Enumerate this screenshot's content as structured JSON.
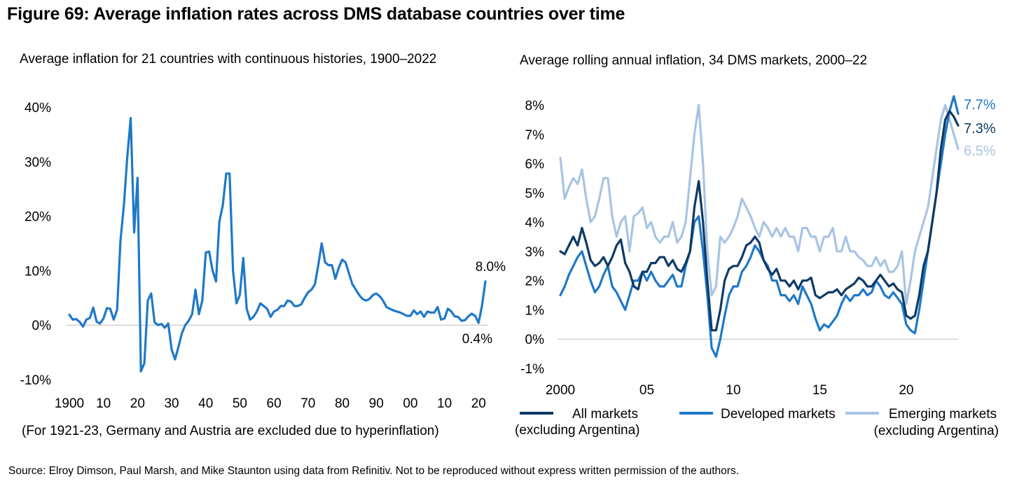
{
  "figure": {
    "title": "Figure 69: Average inflation rates across DMS database countries over time",
    "source": "Source: Elroy Dimson, Paul Marsh, and Mike Staunton using data from Refinitiv. Not to be reproduced without express written permission of the authors."
  },
  "colors": {
    "primary_blue": "#1f78c8",
    "dark_navy": "#0d3a66",
    "light_blue": "#a8c4e3",
    "axis": "#bbbbbb"
  },
  "chart_data": [
    {
      "type": "line",
      "title": "Average inflation for 21 countries with continuous histories, 1900–2022",
      "note": "(For 1921-23, Germany and Austria are excluded due to hyperinflation)",
      "xlim": [
        1900,
        2022
      ],
      "ylim": [
        -10,
        40
      ],
      "ytick_values": [
        -10,
        0,
        10,
        20,
        30,
        40
      ],
      "ytick_labels": [
        "-10%",
        "0%",
        "10%",
        "20%",
        "30%",
        "40%"
      ],
      "xtick_values": [
        1900,
        1910,
        1920,
        1930,
        1940,
        1950,
        1960,
        1970,
        1980,
        1990,
        2000,
        2010,
        2020
      ],
      "xtick_labels": [
        "1900",
        "10",
        "20",
        "30",
        "40",
        "50",
        "60",
        "70",
        "80",
        "90",
        "00",
        "10",
        "20"
      ],
      "grid": false,
      "annotations": [
        {
          "text": "8.0%",
          "x": 2022,
          "y": 8.0
        },
        {
          "text": "0.4%",
          "x": 2020,
          "y": 0.4
        }
      ],
      "series": [
        {
          "color": "#1f78c8",
          "x": [
            1900,
            1901,
            1902,
            1903,
            1904,
            1905,
            1906,
            1907,
            1908,
            1909,
            1910,
            1911,
            1912,
            1913,
            1914,
            1915,
            1916,
            1917,
            1918,
            1919,
            1920,
            1921,
            1922,
            1923,
            1924,
            1925,
            1926,
            1927,
            1928,
            1929,
            1930,
            1931,
            1932,
            1933,
            1934,
            1935,
            1936,
            1937,
            1938,
            1939,
            1940,
            1941,
            1942,
            1943,
            1944,
            1945,
            1946,
            1947,
            1948,
            1949,
            1950,
            1951,
            1952,
            1953,
            1954,
            1955,
            1956,
            1957,
            1958,
            1959,
            1960,
            1961,
            1962,
            1963,
            1964,
            1965,
            1966,
            1967,
            1968,
            1969,
            1970,
            1971,
            1972,
            1973,
            1974,
            1975,
            1976,
            1977,
            1978,
            1979,
            1980,
            1981,
            1982,
            1983,
            1984,
            1985,
            1986,
            1987,
            1988,
            1989,
            1990,
            1991,
            1992,
            1993,
            1994,
            1995,
            1996,
            1997,
            1998,
            1999,
            2000,
            2001,
            2002,
            2003,
            2004,
            2005,
            2006,
            2007,
            2008,
            2009,
            2010,
            2011,
            2012,
            2013,
            2014,
            2015,
            2016,
            2017,
            2018,
            2019,
            2020,
            2021,
            2022
          ],
          "y": [
            1.9,
            1.0,
            1.1,
            0.6,
            -0.3,
            1.0,
            1.3,
            3.2,
            0.6,
            0.3,
            1.2,
            3.1,
            3.0,
            1.0,
            2.8,
            15.5,
            22.0,
            31.0,
            38.0,
            17.0,
            27.0,
            -8.5,
            -7.0,
            4.5,
            5.8,
            0.5,
            0.0,
            0.2,
            -0.5,
            0.3,
            -4.5,
            -6.3,
            -4.0,
            -1.5,
            0.0,
            0.8,
            2.0,
            6.5,
            2.0,
            4.5,
            13.3,
            13.5,
            10.0,
            8.0,
            19.0,
            22.0,
            27.8,
            27.8,
            10.0,
            4.0,
            5.5,
            12.3,
            3.0,
            1.0,
            1.5,
            2.5,
            4.0,
            3.5,
            3.0,
            1.5,
            2.5,
            2.8,
            3.5,
            3.5,
            4.5,
            4.3,
            3.5,
            3.5,
            3.8,
            5.0,
            6.0,
            6.5,
            7.5,
            11.0,
            15.0,
            11.5,
            11.0,
            11.0,
            8.5,
            10.5,
            12.0,
            11.5,
            9.5,
            7.5,
            6.5,
            5.5,
            4.8,
            4.5,
            4.8,
            5.5,
            5.8,
            5.3,
            4.5,
            3.3,
            3.0,
            2.7,
            2.5,
            2.3,
            2.0,
            1.7,
            1.7,
            2.7,
            2.0,
            2.5,
            1.5,
            2.5,
            2.3,
            2.3,
            3.3,
            1.0,
            1.2,
            3.0,
            2.5,
            1.6,
            1.5,
            0.8,
            0.9,
            1.6,
            2.1,
            1.7,
            0.4,
            3.5,
            8.0
          ]
        }
      ]
    },
    {
      "type": "line",
      "title": "Average rolling annual inflation, 34 DMS markets, 2000–22",
      "xlim": [
        2000,
        2023
      ],
      "ylim": [
        -1,
        8
      ],
      "ytick_values": [
        -1,
        0,
        1,
        2,
        3,
        4,
        5,
        6,
        7,
        8
      ],
      "ytick_labels": [
        "-1%",
        "0%",
        "1%",
        "2%",
        "3%",
        "4%",
        "5%",
        "6%",
        "7%",
        "8%"
      ],
      "xtick_values": [
        2000,
        2005,
        2010,
        2015,
        2020
      ],
      "xtick_labels": [
        "2000",
        "05",
        "10",
        "15",
        "20"
      ],
      "grid": false,
      "legend_position": "bottom",
      "end_labels": [
        "7.7%",
        "7.3%",
        "6.5%"
      ],
      "series": [
        {
          "name": "Emerging markets\n(excluding Argentina)",
          "color": "#a8c4e3",
          "x": [
            2000.0,
            2000.25,
            2000.5,
            2000.75,
            2001.0,
            2001.25,
            2001.5,
            2001.75,
            2002.0,
            2002.25,
            2002.5,
            2002.75,
            2003.0,
            2003.25,
            2003.5,
            2003.75,
            2004.0,
            2004.25,
            2004.5,
            2004.75,
            2005.0,
            2005.25,
            2005.5,
            2005.75,
            2006.0,
            2006.25,
            2006.5,
            2006.75,
            2007.0,
            2007.25,
            2007.5,
            2007.75,
            2008.0,
            2008.25,
            2008.5,
            2008.75,
            2009.0,
            2009.25,
            2009.5,
            2009.75,
            2010.0,
            2010.25,
            2010.5,
            2010.75,
            2011.0,
            2011.25,
            2011.5,
            2011.75,
            2012.0,
            2012.25,
            2012.5,
            2012.75,
            2013.0,
            2013.25,
            2013.5,
            2013.75,
            2014.0,
            2014.25,
            2014.5,
            2014.75,
            2015.0,
            2015.25,
            2015.5,
            2015.75,
            2016.0,
            2016.25,
            2016.5,
            2016.75,
            2017.0,
            2017.25,
            2017.5,
            2017.75,
            2018.0,
            2018.25,
            2018.5,
            2018.75,
            2019.0,
            2019.25,
            2019.5,
            2019.75,
            2020.0,
            2020.25,
            2020.5,
            2020.75,
            2021.0,
            2021.25,
            2021.5,
            2021.75,
            2022.0,
            2022.25,
            2022.5,
            2022.75,
            2023.0
          ],
          "y": [
            6.2,
            4.8,
            5.2,
            5.5,
            5.3,
            5.8,
            4.8,
            4.0,
            4.2,
            4.8,
            5.5,
            5.5,
            4.2,
            3.5,
            4.0,
            4.2,
            3.0,
            4.2,
            4.3,
            4.5,
            3.8,
            4.0,
            3.5,
            3.3,
            3.5,
            3.5,
            4.0,
            3.3,
            3.5,
            4.0,
            5.5,
            7.0,
            8.0,
            6.0,
            3.0,
            1.5,
            1.8,
            3.5,
            3.3,
            3.5,
            3.8,
            4.2,
            4.8,
            4.5,
            4.2,
            3.8,
            3.5,
            4.0,
            3.8,
            3.5,
            3.8,
            3.5,
            3.8,
            3.5,
            3.5,
            3.0,
            3.8,
            3.8,
            3.5,
            3.5,
            3.0,
            3.5,
            3.5,
            3.8,
            3.0,
            3.0,
            3.5,
            3.0,
            3.0,
            2.8,
            2.7,
            2.5,
            2.5,
            2.8,
            2.5,
            2.7,
            2.3,
            2.3,
            2.5,
            3.0,
            1.2,
            2.0,
            3.0,
            3.5,
            4.0,
            4.5,
            5.5,
            6.5,
            7.5,
            8.0,
            7.5,
            7.0,
            6.5
          ]
        },
        {
          "name": "Developed markets",
          "color": "#1f78c8",
          "x": [
            2000.0,
            2000.25,
            2000.5,
            2000.75,
            2001.0,
            2001.25,
            2001.5,
            2001.75,
            2002.0,
            2002.25,
            2002.5,
            2002.75,
            2003.0,
            2003.25,
            2003.5,
            2003.75,
            2004.0,
            2004.25,
            2004.5,
            2004.75,
            2005.0,
            2005.25,
            2005.5,
            2005.75,
            2006.0,
            2006.25,
            2006.5,
            2006.75,
            2007.0,
            2007.25,
            2007.5,
            2007.75,
            2008.0,
            2008.25,
            2008.5,
            2008.75,
            2009.0,
            2009.25,
            2009.5,
            2009.75,
            2010.0,
            2010.25,
            2010.5,
            2010.75,
            2011.0,
            2011.25,
            2011.5,
            2011.75,
            2012.0,
            2012.25,
            2012.5,
            2012.75,
            2013.0,
            2013.25,
            2013.5,
            2013.75,
            2014.0,
            2014.25,
            2014.5,
            2014.75,
            2015.0,
            2015.25,
            2015.5,
            2015.75,
            2016.0,
            2016.25,
            2016.5,
            2016.75,
            2017.0,
            2017.25,
            2017.5,
            2017.75,
            2018.0,
            2018.25,
            2018.5,
            2018.75,
            2019.0,
            2019.25,
            2019.5,
            2019.75,
            2020.0,
            2020.25,
            2020.5,
            2020.75,
            2021.0,
            2021.25,
            2021.5,
            2021.75,
            2022.0,
            2022.25,
            2022.5,
            2022.75,
            2023.0
          ],
          "y": [
            1.5,
            1.8,
            2.2,
            2.5,
            2.8,
            3.0,
            2.5,
            2.0,
            1.6,
            1.8,
            2.2,
            2.5,
            1.8,
            1.6,
            1.3,
            1.0,
            1.5,
            2.0,
            2.0,
            2.3,
            2.0,
            2.3,
            2.0,
            1.8,
            1.8,
            2.0,
            2.2,
            1.8,
            1.8,
            2.5,
            3.0,
            4.0,
            4.2,
            3.0,
            1.5,
            -0.3,
            -0.6,
            0.0,
            0.8,
            1.5,
            1.8,
            1.8,
            2.3,
            2.5,
            2.8,
            3.2,
            3.0,
            2.7,
            2.5,
            2.0,
            2.0,
            1.5,
            1.5,
            1.3,
            1.5,
            1.2,
            1.8,
            1.5,
            1.2,
            0.7,
            0.3,
            0.5,
            0.4,
            0.6,
            0.8,
            1.2,
            1.5,
            1.3,
            1.5,
            1.5,
            1.7,
            1.5,
            1.6,
            2.0,
            1.8,
            1.5,
            1.4,
            1.6,
            1.4,
            1.2,
            0.5,
            0.3,
            0.2,
            1.0,
            2.0,
            3.0,
            4.0,
            5.0,
            6.0,
            7.0,
            7.8,
            8.3,
            7.7
          ]
        },
        {
          "name": "All markets\n(excluding Argentina)",
          "color": "#0d3a66",
          "x": [
            2000.0,
            2000.25,
            2000.5,
            2000.75,
            2001.0,
            2001.25,
            2001.5,
            2001.75,
            2002.0,
            2002.25,
            2002.5,
            2002.75,
            2003.0,
            2003.25,
            2003.5,
            2003.75,
            2004.0,
            2004.25,
            2004.5,
            2004.75,
            2005.0,
            2005.25,
            2005.5,
            2005.75,
            2006.0,
            2006.25,
            2006.5,
            2006.75,
            2007.0,
            2007.25,
            2007.5,
            2007.75,
            2008.0,
            2008.25,
            2008.5,
            2008.75,
            2009.0,
            2009.25,
            2009.5,
            2009.75,
            2010.0,
            2010.25,
            2010.5,
            2010.75,
            2011.0,
            2011.25,
            2011.5,
            2011.75,
            2012.0,
            2012.25,
            2012.5,
            2012.75,
            2013.0,
            2013.25,
            2013.5,
            2013.75,
            2014.0,
            2014.25,
            2014.5,
            2014.75,
            2015.0,
            2015.25,
            2015.5,
            2015.75,
            2016.0,
            2016.25,
            2016.5,
            2016.75,
            2017.0,
            2017.25,
            2017.5,
            2017.75,
            2018.0,
            2018.25,
            2018.5,
            2018.75,
            2019.0,
            2019.25,
            2019.5,
            2019.75,
            2020.0,
            2020.25,
            2020.5,
            2020.75,
            2021.0,
            2021.25,
            2021.5,
            2021.75,
            2022.0,
            2022.25,
            2022.5,
            2022.75,
            2023.0
          ],
          "y": [
            3.0,
            2.9,
            3.2,
            3.5,
            3.2,
            3.8,
            3.3,
            2.7,
            2.5,
            2.6,
            2.8,
            2.5,
            2.8,
            3.2,
            3.4,
            2.6,
            2.3,
            1.8,
            1.7,
            2.3,
            2.3,
            2.6,
            2.6,
            2.8,
            2.8,
            2.5,
            2.7,
            2.4,
            2.3,
            2.6,
            3.0,
            4.5,
            5.4,
            4.0,
            2.0,
            0.3,
            0.3,
            1.0,
            2.0,
            2.4,
            2.5,
            2.5,
            2.8,
            3.2,
            3.3,
            3.5,
            3.3,
            2.7,
            2.4,
            2.2,
            2.4,
            2.0,
            2.0,
            1.8,
            2.0,
            1.7,
            2.0,
            2.0,
            2.1,
            1.5,
            1.4,
            1.5,
            1.6,
            1.6,
            1.7,
            1.5,
            1.7,
            1.8,
            1.9,
            2.1,
            2.0,
            1.8,
            1.8,
            2.0,
            2.2,
            2.0,
            1.8,
            1.9,
            1.7,
            1.6,
            0.8,
            0.7,
            0.8,
            1.5,
            2.5,
            3.0,
            4.0,
            5.0,
            6.5,
            7.5,
            7.8,
            7.6,
            7.3
          ]
        }
      ]
    }
  ]
}
